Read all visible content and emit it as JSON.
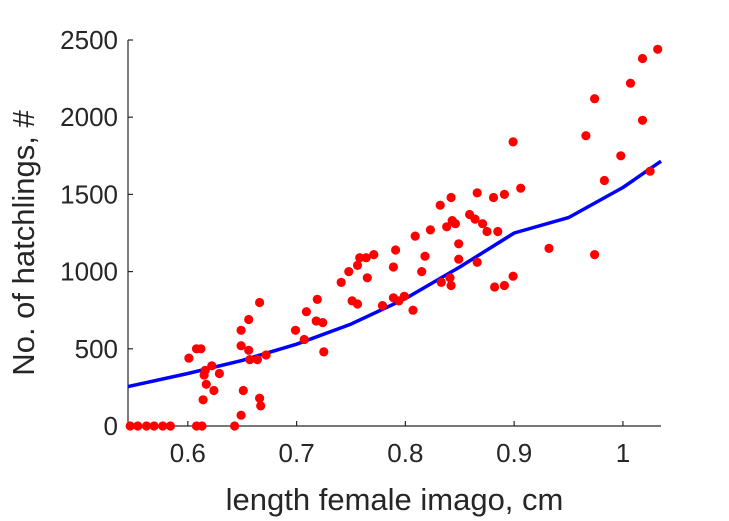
{
  "chart_data": {
    "type": "scatter",
    "title": "",
    "xlabel": "length female imago, cm",
    "ylabel": "No. of hatchlings, #",
    "xlim": [
      0.545,
      1.035
    ],
    "ylim": [
      0,
      2500
    ],
    "x_ticks": [
      0.6,
      0.7,
      0.8,
      0.9,
      1.0
    ],
    "x_tick_labels": [
      "0.6",
      "0.7",
      "0.8",
      "0.9",
      "1"
    ],
    "y_ticks": [
      0,
      500,
      1000,
      1500,
      2000,
      2500
    ],
    "y_tick_labels": [
      "0",
      "500",
      "1000",
      "1500",
      "2000",
      "2500"
    ],
    "grid": false,
    "legend": "none",
    "colors": {
      "points": "#ff0000",
      "fit": "#0000ff",
      "axis": "#262626"
    },
    "series": [
      {
        "kind": "scatter",
        "points": [
          [
            0.547,
            0
          ],
          [
            0.554,
            0
          ],
          [
            0.562,
            0
          ],
          [
            0.569,
            0
          ],
          [
            0.577,
            0
          ],
          [
            0.584,
            0
          ],
          [
            0.601,
            440
          ],
          [
            0.608,
            500
          ],
          [
            0.608,
            0
          ],
          [
            0.612,
            500
          ],
          [
            0.613,
            0
          ],
          [
            0.614,
            170
          ],
          [
            0.615,
            330
          ],
          [
            0.616,
            360
          ],
          [
            0.617,
            270
          ],
          [
            0.622,
            390
          ],
          [
            0.624,
            230
          ],
          [
            0.629,
            340
          ],
          [
            0.643,
            0
          ],
          [
            0.649,
            620
          ],
          [
            0.651,
            230
          ],
          [
            0.649,
            520
          ],
          [
            0.649,
            70
          ],
          [
            0.656,
            690
          ],
          [
            0.656,
            490
          ],
          [
            0.657,
            430
          ],
          [
            0.664,
            430
          ],
          [
            0.666,
            800
          ],
          [
            0.666,
            180
          ],
          [
            0.667,
            130
          ],
          [
            0.672,
            460
          ],
          [
            0.699,
            620
          ],
          [
            0.707,
            560
          ],
          [
            0.709,
            740
          ],
          [
            0.718,
            680
          ],
          [
            0.719,
            820
          ],
          [
            0.724,
            670
          ],
          [
            0.725,
            480
          ],
          [
            0.741,
            930
          ],
          [
            0.748,
            1000
          ],
          [
            0.751,
            810
          ],
          [
            0.756,
            1040
          ],
          [
            0.756,
            790
          ],
          [
            0.758,
            1090
          ],
          [
            0.764,
            1090
          ],
          [
            0.765,
            960
          ],
          [
            0.771,
            1110
          ],
          [
            0.779,
            780
          ],
          [
            0.789,
            1030
          ],
          [
            0.789,
            830
          ],
          [
            0.791,
            1140
          ],
          [
            0.794,
            810
          ],
          [
            0.799,
            840
          ],
          [
            0.807,
            750
          ],
          [
            0.809,
            1230
          ],
          [
            0.815,
            1000
          ],
          [
            0.818,
            1100
          ],
          [
            0.823,
            1270
          ],
          [
            0.832,
            1430
          ],
          [
            0.833,
            930
          ],
          [
            0.838,
            1290
          ],
          [
            0.841,
            960
          ],
          [
            0.842,
            1480
          ],
          [
            0.843,
            1330
          ],
          [
            0.842,
            910
          ],
          [
            0.846,
            1310
          ],
          [
            0.849,
            1180
          ],
          [
            0.849,
            1080
          ],
          [
            0.859,
            1370
          ],
          [
            0.864,
            1340
          ],
          [
            0.866,
            1510
          ],
          [
            0.866,
            1060
          ],
          [
            0.871,
            1310
          ],
          [
            0.875,
            1260
          ],
          [
            0.881,
            1480
          ],
          [
            0.882,
            900
          ],
          [
            0.885,
            1260
          ],
          [
            0.891,
            910
          ],
          [
            0.891,
            1500
          ],
          [
            0.899,
            1840
          ],
          [
            0.899,
            970
          ],
          [
            0.906,
            1540
          ],
          [
            0.932,
            1150
          ],
          [
            0.966,
            1880
          ],
          [
            0.974,
            2120
          ],
          [
            0.974,
            1110
          ],
          [
            0.983,
            1590
          ],
          [
            0.998,
            1750
          ],
          [
            1.007,
            2220
          ],
          [
            1.018,
            2380
          ],
          [
            1.018,
            1980
          ],
          [
            1.025,
            1650
          ],
          [
            1.032,
            2440
          ]
        ]
      },
      {
        "kind": "fit-line",
        "model": "exponential",
        "points": [
          [
            0.545,
            255
          ],
          [
            0.6,
            340
          ],
          [
            0.65,
            425
          ],
          [
            0.7,
            530
          ],
          [
            0.75,
            660
          ],
          [
            0.8,
            825
          ],
          [
            0.85,
            1030
          ],
          [
            0.9,
            1250
          ],
          [
            0.95,
            1350
          ],
          [
            1.0,
            1545
          ],
          [
            1.035,
            1715
          ]
        ]
      }
    ]
  }
}
